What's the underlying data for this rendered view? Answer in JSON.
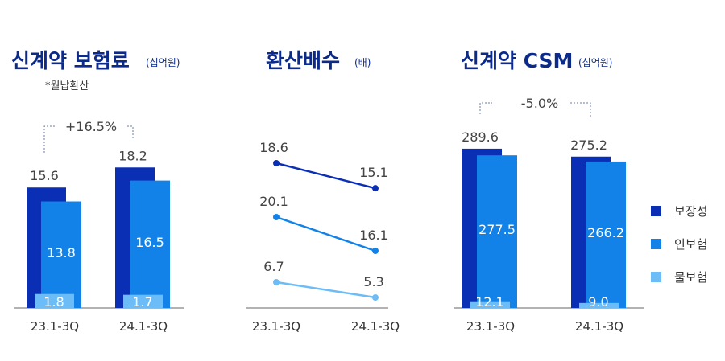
{
  "colors": {
    "보장성": "#0a2fb5",
    "인보험": "#1282e8",
    "물보험": "#6bbcf7",
    "title": "#0b2a8a"
  },
  "legend": [
    "보장성",
    "인보험",
    "물보험"
  ],
  "chart_data": [
    {
      "type": "bar",
      "title": "신계약 보험료",
      "unit": "(십억원)",
      "note": "*월납환산",
      "categories": [
        "23.1-3Q",
        "24.1-3Q"
      ],
      "series": [
        {
          "name": "보장성",
          "values": [
            15.6,
            18.2
          ]
        },
        {
          "name": "인보험",
          "values": [
            13.8,
            16.5
          ]
        },
        {
          "name": "물보험",
          "values": [
            1.8,
            1.7
          ]
        }
      ],
      "value_labels": [
        [
          "15.6",
          "13.8",
          "1.8"
        ],
        [
          "18.2",
          "16.5",
          "1.7"
        ]
      ],
      "change": "+16.5%"
    },
    {
      "type": "line",
      "title": "환산배수",
      "unit": "(배)",
      "categories": [
        "23.1-3Q",
        "24.1-3Q"
      ],
      "series": [
        {
          "name": "보장성",
          "values": [
            18.6,
            15.1
          ],
          "labels": [
            "18.6",
            "15.1"
          ]
        },
        {
          "name": "인보험",
          "values": [
            20.1,
            16.1
          ],
          "labels": [
            "20.1",
            "16.1"
          ]
        },
        {
          "name": "물보험",
          "values": [
            6.7,
            5.3
          ],
          "labels": [
            "6.7",
            "5.3"
          ]
        }
      ]
    },
    {
      "type": "bar",
      "title": "신계약 CSM",
      "unit": "(십억원)",
      "categories": [
        "23.1-3Q",
        "24.1-3Q"
      ],
      "series": [
        {
          "name": "보장성",
          "values": [
            289.6,
            275.2
          ]
        },
        {
          "name": "인보험",
          "values": [
            277.5,
            266.2
          ]
        },
        {
          "name": "물보험",
          "values": [
            12.1,
            9.0
          ]
        }
      ],
      "value_labels": [
        [
          "289.6",
          "277.5",
          "12.1"
        ],
        [
          "275.2",
          "266.2",
          "9.0"
        ]
      ],
      "change": "-5.0%"
    }
  ]
}
